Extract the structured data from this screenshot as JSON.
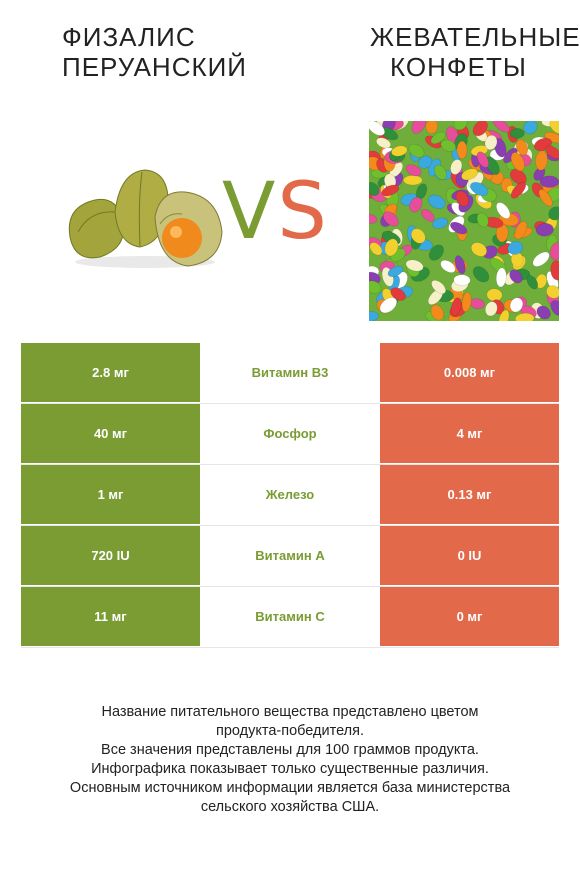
{
  "header": {
    "left_title_line1": "ФИЗАЛИС",
    "left_title_line2": "ПЕРУАНСКИЙ",
    "right_title_line1": "ЖЕВАТЕЛЬНЫЕ",
    "right_title_line2": "КОНФЕТЫ",
    "vs_v": "V",
    "vs_s": "S"
  },
  "colors": {
    "left_accent": "#7a9c33",
    "right_accent": "#e2694a"
  },
  "images": {
    "left": "physalis-fruit-image",
    "right": "jelly-beans-image"
  },
  "rows": [
    {
      "left": "2.8 мг",
      "nutrient": "Витамин B3",
      "right": "0.008 мг"
    },
    {
      "left": "40 мг",
      "nutrient": "Фосфор",
      "right": "4 мг"
    },
    {
      "left": "1 мг",
      "nutrient": "Железо",
      "right": "0.13 мг"
    },
    {
      "left": "720 IU",
      "nutrient": "Витамин A",
      "right": "0 IU"
    },
    {
      "left": "11 мг",
      "nutrient": "Витамин C",
      "right": "0 мг"
    }
  ],
  "footer": {
    "line1": "Название питательного вещества представлено цветом",
    "line2": "продукта-победителя.",
    "line3": "Все значения представлены для 100 граммов продукта.",
    "line4": "Инфографика показывает только существенные различия.",
    "line5": "Основным источником информации является база министерства",
    "line6": "сельского хозяйства США."
  }
}
